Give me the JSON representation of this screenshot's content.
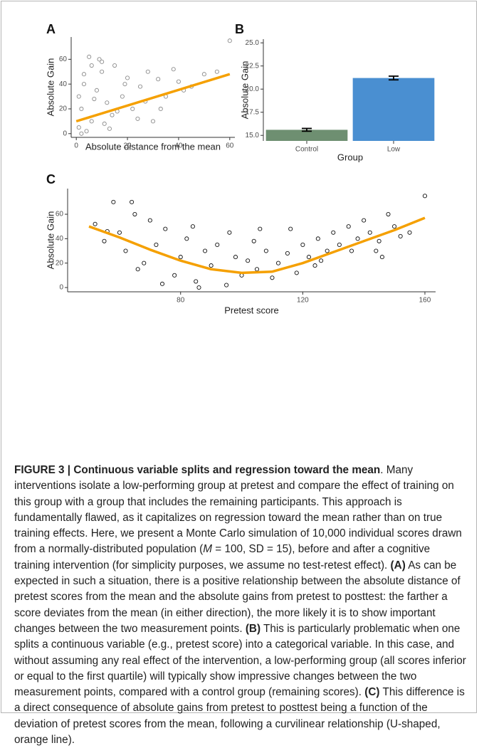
{
  "chart_data": [
    {
      "type": "scatter",
      "panel": "A",
      "xlabel": "Absolute distance from the mean",
      "ylabel": "Absolute Gain",
      "xlim": [
        -2,
        62
      ],
      "ylim": [
        -3,
        78
      ],
      "xticks": [
        0,
        20,
        40,
        60
      ],
      "yticks": [
        0,
        20,
        40,
        60
      ],
      "series": [
        {
          "mode": "markers",
          "color": "#8c8c8c",
          "x": [
            1,
            2,
            3,
            5,
            6,
            8,
            10,
            12,
            14,
            15,
            18,
            20,
            22,
            25,
            28,
            30,
            32,
            35,
            38,
            40,
            42,
            45,
            50,
            55,
            60,
            4,
            7,
            9,
            11,
            16,
            3,
            13,
            24,
            33,
            2,
            6,
            19,
            27,
            1,
            10
          ],
          "values": [
            5,
            20,
            40,
            62,
            10,
            35,
            50,
            25,
            15,
            55,
            30,
            45,
            20,
            38,
            50,
            10,
            44,
            30,
            52,
            42,
            35,
            38,
            48,
            50,
            75,
            2,
            28,
            60,
            8,
            18,
            48,
            4,
            12,
            20,
            0,
            55,
            40,
            26,
            30,
            58
          ]
        },
        {
          "mode": "line",
          "color": "#f5a000",
          "x": [
            0,
            60
          ],
          "values": [
            10,
            48
          ]
        }
      ]
    },
    {
      "type": "bar",
      "panel": "B",
      "xlabel": "Group",
      "ylabel": "Absolute Gain",
      "ylim": [
        14.4,
        25.4
      ],
      "yticks": [
        {
          "value": 15,
          "label": "15.0"
        },
        17.5,
        {
          "value": 20,
          "label": "20.0"
        },
        22.5,
        {
          "value": 25,
          "label": "25.0"
        }
      ],
      "categories": [
        "Control",
        "Low"
      ],
      "values": [
        15.6,
        21.2
      ],
      "errors": [
        0.15,
        0.2
      ],
      "colors": [
        "#6e8f71",
        "#4a8fd1"
      ]
    },
    {
      "type": "scatter",
      "panel": "C",
      "xlabel": "Pretest score",
      "ylabel": "Absolute Gain",
      "xlim": [
        43,
        163.5
      ],
      "ylim": [
        -3.5,
        81
      ],
      "xticks": [
        80,
        120,
        160
      ],
      "yticks": [
        0,
        20,
        40,
        60
      ],
      "series": [
        {
          "mode": "markers",
          "color": "#111111",
          "x": [
            52,
            55,
            58,
            60,
            62,
            65,
            68,
            70,
            72,
            75,
            78,
            80,
            82,
            85,
            88,
            90,
            92,
            95,
            98,
            100,
            102,
            105,
            108,
            110,
            112,
            115,
            118,
            120,
            122,
            125,
            128,
            130,
            132,
            135,
            138,
            140,
            142,
            145,
            148,
            150,
            152,
            155,
            160,
            56,
            64,
            74,
            84,
            96,
            106,
            116,
            126,
            136,
            146,
            66,
            86,
            104,
            124,
            144
          ],
          "values": [
            52,
            38,
            70,
            45,
            30,
            60,
            20,
            55,
            35,
            48,
            10,
            25,
            40,
            5,
            30,
            18,
            35,
            2,
            25,
            10,
            22,
            15,
            30,
            8,
            20,
            28,
            12,
            35,
            25,
            40,
            30,
            45,
            35,
            50,
            40,
            55,
            45,
            38,
            60,
            50,
            42,
            45,
            75,
            46,
            70,
            3,
            50,
            45,
            48,
            48,
            22,
            30,
            25,
            15,
            0,
            38,
            18,
            30
          ]
        },
        {
          "mode": "line",
          "color": "#f5a000",
          "x": [
            50,
            60,
            70,
            80,
            90,
            100,
            110,
            120,
            130,
            140,
            150,
            160
          ],
          "values": [
            50,
            41,
            31,
            22,
            15,
            12,
            13,
            20,
            29,
            38,
            47,
            57
          ]
        }
      ]
    }
  ],
  "caption": [
    {
      "text": "FIGURE 3 | Continuous variable splits and regression toward the mean",
      "style": "bold"
    },
    {
      "text": ". Many interventions isolate a low-performing group at pretest and compare the effect of training on this group with a group that includes the remaining participants. This approach is fundamentally flawed, as it capitalizes on regression toward the mean rather than on true training effects. Here, we present a Monte Carlo simulation of 10,000 individual scores drawn from a normally-distributed population (",
      "style": "normal"
    },
    {
      "text": "M",
      "style": "italic"
    },
    {
      "text": " = 100, SD = 15), before and after a cognitive training intervention (for simplicity purposes, we assume no test-retest effect). ",
      "style": "normal"
    },
    {
      "text": "(A)",
      "style": "bold"
    },
    {
      "text": " As can be expected in such a situation, there is a positive relationship between the absolute distance of pretest scores from the mean and the absolute gains from pretest to posttest: the farther a score deviates from the mean (in either direction), the more likely it is to show important changes between the two measurement points. ",
      "style": "normal"
    },
    {
      "text": "(B)",
      "style": "bold"
    },
    {
      "text": " This is particularly problematic when one splits a continuous variable (e.g., pretest score) into a categorical variable. In this case, and without assuming any real effect of the intervention, a low-performing group (all scores inferior or equal to the first quartile) will typically show impressive changes between the two measurement points, compared with a control group (remaining scores). ",
      "style": "normal"
    },
    {
      "text": "(C)",
      "style": "bold"
    },
    {
      "text": " This difference is a direct consequence of absolute gains from pretest to posttest being a function of the deviation of pretest scores from the mean, following a curvilinear relationship (U-shaped, orange line).",
      "style": "normal"
    }
  ]
}
